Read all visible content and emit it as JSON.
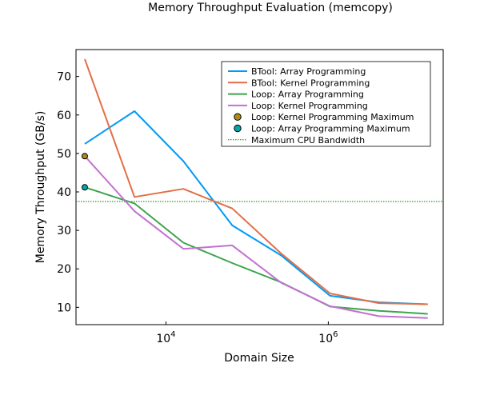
{
  "chart_data": {
    "type": "line",
    "title": "Memory Throughput Evaluation (memcopy)",
    "xlabel": "Domain Size",
    "ylabel": "Memory Throughput (GB/s)",
    "xscale": "log10",
    "xlim": [
      780,
      26000000
    ],
    "ylim": [
      5.5,
      77
    ],
    "xticks": [
      {
        "value": 10000,
        "base": "10",
        "exp": "4"
      },
      {
        "value": 1000000,
        "base": "10",
        "exp": "6"
      }
    ],
    "yticks": [
      10,
      20,
      30,
      40,
      50,
      60,
      70
    ],
    "grid": false,
    "legend_position": "top-right",
    "series": [
      {
        "name": "BTool: Array Programming",
        "color": "#009af9",
        "x": [
          1000,
          4096,
          16384,
          65536,
          262144,
          1048576,
          4194304,
          16777216
        ],
        "y": [
          52.5,
          61,
          48,
          31.3,
          23.5,
          13,
          11.3,
          10.8
        ]
      },
      {
        "name": "BTool: Kernel Programming",
        "color": "#e26f46",
        "x": [
          1000,
          4096,
          16384,
          65536,
          262144,
          1048576,
          4194304,
          16777216
        ],
        "y": [
          74.5,
          38.7,
          40.8,
          35.7,
          24,
          13.6,
          11.1,
          10.8
        ]
      },
      {
        "name": "Loop: Array Programming",
        "color": "#3da44d",
        "x": [
          1000,
          4096,
          16384,
          65536,
          262144,
          1048576,
          4194304,
          16777216
        ],
        "y": [
          41.2,
          37,
          26.8,
          21.5,
          16.5,
          10.2,
          9.1,
          8.3
        ]
      },
      {
        "name": "Loop: Kernel Programming",
        "color": "#c271d2",
        "x": [
          1000,
          4096,
          16384,
          65536,
          262144,
          1048576,
          4194304,
          16777216
        ],
        "y": [
          49.3,
          35,
          25.2,
          26.1,
          16.4,
          10.3,
          7.7,
          7.2
        ]
      }
    ],
    "points": [
      {
        "name": "Loop: Kernel Programming Maximum",
        "color": "#ac8d18",
        "x": 1000,
        "y": 49.3
      },
      {
        "name": "Loop: Array Programming Maximum",
        "color": "#00a9ad",
        "x": 1000,
        "y": 41.2
      }
    ],
    "hlines": [
      {
        "name": "Maximum CPU Bandwidth",
        "color": "#008000",
        "y": 37.5,
        "style": "dotted"
      }
    ],
    "legend_order": [
      {
        "kind": "series",
        "index": 0
      },
      {
        "kind": "series",
        "index": 1
      },
      {
        "kind": "series",
        "index": 2
      },
      {
        "kind": "series",
        "index": 3
      },
      {
        "kind": "point",
        "index": 0
      },
      {
        "kind": "point",
        "index": 1
      },
      {
        "kind": "hline",
        "index": 0
      }
    ]
  }
}
